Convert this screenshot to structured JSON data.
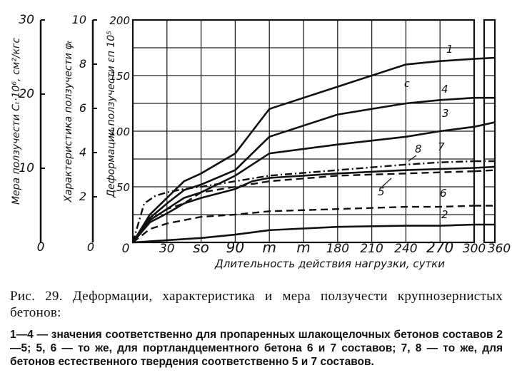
{
  "chart_data": {
    "type": "line",
    "xlabel": "Длительность действия нагрузки, сутки",
    "x_ticks": [
      "30",
      "so",
      "90",
      "m",
      "m",
      "180",
      "210",
      "240",
      "270",
      "300",
      "360"
    ],
    "xlim": [
      0,
      360
    ],
    "y_axes": [
      {
        "label": "Мера ползучести Cₜ·10⁶, см²/кгс",
        "ticks": [
          "30",
          "20",
          "10",
          "0"
        ],
        "range": [
          0,
          30
        ]
      },
      {
        "label": "Характеристика ползучести φₜ",
        "ticks": [
          "10",
          "8",
          "6",
          "4",
          "2",
          "0"
        ],
        "range": [
          0,
          10
        ]
      },
      {
        "label": "Деформации ползучести εп 10⁵",
        "ticks": [
          "200",
          "150",
          "100",
          "50"
        ],
        "range": [
          0,
          200
        ]
      }
    ],
    "grid": true,
    "stray_mark": "с",
    "series": [
      {
        "name": "1",
        "style": "solid",
        "x": [
          0,
          15,
          30,
          45,
          60,
          90,
          105,
          120,
          180,
          240,
          270,
          300,
          360
        ],
        "y": [
          0,
          25,
          40,
          55,
          62,
          80,
          100,
          120,
          140,
          160,
          163,
          165,
          166
        ]
      },
      {
        "name": "4",
        "style": "solid",
        "x": [
          0,
          15,
          30,
          45,
          60,
          90,
          105,
          120,
          180,
          240,
          270,
          300,
          360
        ],
        "y": [
          0,
          22,
          35,
          47,
          52,
          65,
          80,
          95,
          115,
          125,
          128,
          130,
          130
        ]
      },
      {
        "name": "3",
        "style": "solid",
        "x": [
          0,
          15,
          30,
          45,
          60,
          90,
          105,
          120,
          180,
          240,
          270,
          300,
          360
        ],
        "y": [
          0,
          20,
          30,
          40,
          45,
          60,
          70,
          80,
          88,
          95,
          100,
          104,
          108
        ]
      },
      {
        "name": "8",
        "style": "dashdot",
        "x": [
          0,
          10,
          20,
          30,
          45,
          60,
          90,
          120,
          180,
          240,
          270,
          300,
          360
        ],
        "y": [
          0,
          35,
          42,
          45,
          48,
          50,
          55,
          60,
          65,
          70,
          72,
          73,
          73
        ]
      },
      {
        "name": "7",
        "style": "dashed",
        "x": [
          0,
          15,
          30,
          45,
          60,
          90,
          120,
          180,
          240,
          270,
          300,
          360
        ],
        "y": [
          0,
          20,
          30,
          35,
          45,
          50,
          55,
          60,
          62,
          63,
          64,
          65
        ]
      },
      {
        "name": "5",
        "style": "solid",
        "x": [
          0,
          15,
          30,
          45,
          60,
          90,
          105,
          120,
          180,
          240,
          270,
          300,
          360
        ],
        "y": [
          0,
          18,
          26,
          35,
          40,
          48,
          55,
          58,
          62,
          65,
          66,
          67,
          68
        ]
      },
      {
        "name": "6",
        "style": "dashed",
        "x": [
          0,
          15,
          30,
          45,
          60,
          90,
          120,
          180,
          240,
          270,
          300,
          360
        ],
        "y": [
          0,
          12,
          17,
          20,
          23,
          25,
          28,
          30,
          32,
          32,
          33,
          33
        ]
      },
      {
        "name": "2",
        "style": "solid",
        "x": [
          0,
          30,
          60,
          90,
          120,
          180,
          240,
          270,
          300,
          360
        ],
        "y": [
          0,
          2,
          4,
          7,
          11,
          14,
          15,
          15,
          16,
          16
        ]
      }
    ]
  },
  "caption": {
    "title": "Рис. 29. Деформации, характеристика и мера ползучести крупнозернистых бетонов:",
    "legend": "1—4 — значения соответственно для пропаренных шлакощелочных бетонов составов 2—5; 5, 6 — то же, для портландцементного бетона 6 и 7 составов; 7, 8 — то же, для бетонов естественного твердения соответственно 5 и 7 составов."
  }
}
